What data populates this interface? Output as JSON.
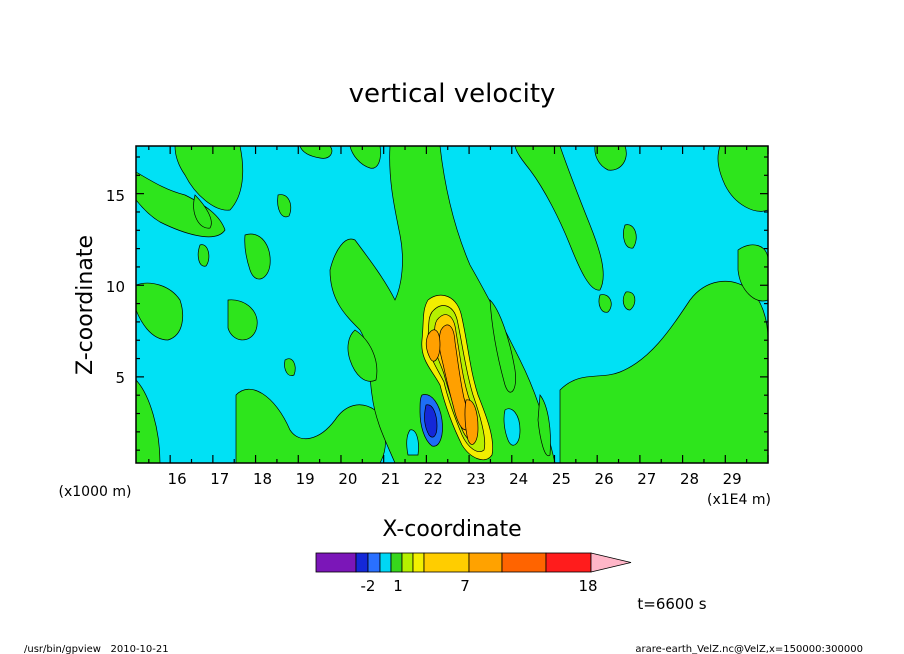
{
  "chart_data": {
    "type": "heatmap",
    "title": "vertical velocity",
    "xlabel": "X-coordinate",
    "ylabel": "Z-coordinate",
    "x_unit_label": "(x1E4 m)",
    "y_unit_label": "(x1000 m)",
    "x_ticks": [
      "16",
      "17",
      "18",
      "19",
      "20",
      "21",
      "22",
      "23",
      "24",
      "25",
      "26",
      "27",
      "28",
      "29"
    ],
    "y_ticks": [
      "5",
      "10",
      "15"
    ],
    "xlim": [
      15.2,
      30.0
    ],
    "ylim": [
      0.3,
      17.6
    ],
    "time_label": "t=6600 s",
    "colorbar": {
      "labels": [
        "-2",
        "1",
        "7",
        "18"
      ],
      "colors": [
        "#7b16b8",
        "#1428d8",
        "#2a70ff",
        "#00d6f5",
        "#37d61c",
        "#b5f000",
        "#f3f000",
        "#ffcd00",
        "#ffa200",
        "#ff6400",
        "#ff1c1c",
        "#ff8080",
        "#ffb6c8"
      ]
    },
    "features": [
      {
        "kind": "updraft core",
        "x": 22.45,
        "z": 6.5,
        "max": 18
      },
      {
        "kind": "updraft",
        "x": 23.0,
        "z": 2.5,
        "max": 7
      },
      {
        "kind": "downdraft",
        "x": 21.95,
        "z": 2.4,
        "min": -2
      }
    ]
  },
  "footer": {
    "left": "/usr/bin/gpview   2010-10-21",
    "right": "arare-earth_VelZ.nc@VelZ,x=150000:300000"
  }
}
